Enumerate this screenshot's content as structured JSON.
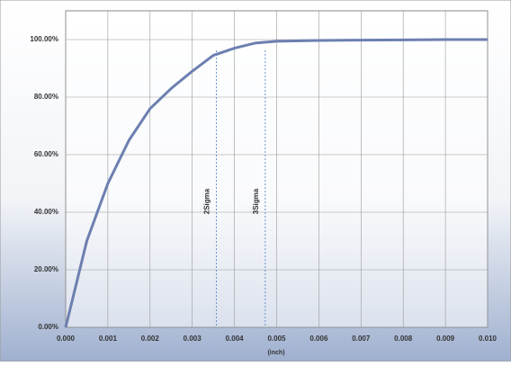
{
  "chart_data": {
    "type": "line",
    "x_label": "(inch)",
    "x": [
      0,
      0.0005,
      0.001,
      0.0015,
      0.002,
      0.0025,
      0.003,
      0.0035,
      0.004,
      0.0045,
      0.005,
      0.006,
      0.007,
      0.008,
      0.009,
      0.01
    ],
    "series": [
      {
        "color": "#6c7fb0",
        "values": [
          0,
          30,
          50,
          65,
          76,
          83,
          89,
          94.5,
          97,
          98.8,
          99.4,
          99.7,
          99.8,
          99.9,
          100,
          100
        ]
      }
    ],
    "xlim": [
      0,
      0.01
    ],
    "xticks": [
      {
        "value": 0,
        "label": "0.000"
      },
      {
        "value": 0.001,
        "label": "0.001"
      },
      {
        "value": 0.002,
        "label": "0.002"
      },
      {
        "value": 0.003,
        "label": "0.003"
      },
      {
        "value": 0.004,
        "label": "0.004"
      },
      {
        "value": 0.005,
        "label": "0.005"
      },
      {
        "value": 0.006,
        "label": "0.006"
      },
      {
        "value": 0.007,
        "label": "0.007"
      },
      {
        "value": 0.008,
        "label": "0.008"
      },
      {
        "value": 0.009,
        "label": "0.009"
      },
      {
        "value": 0.01,
        "label": "0.010"
      }
    ],
    "ylim": [
      0,
      100
    ],
    "yticks": [
      {
        "value": 0,
        "label": "0.00%"
      },
      {
        "value": 20,
        "label": "20.00%"
      },
      {
        "value": 40,
        "label": "40.00%"
      },
      {
        "value": 60,
        "label": "60.00%"
      },
      {
        "value": 80,
        "label": "80.00%"
      },
      {
        "value": 100,
        "label": "100.00%"
      }
    ],
    "grid": true,
    "annotations": [
      {
        "text": "2Sigma",
        "x": 0.00357
      },
      {
        "text": "3Sigma",
        "x": 0.00473
      }
    ]
  }
}
